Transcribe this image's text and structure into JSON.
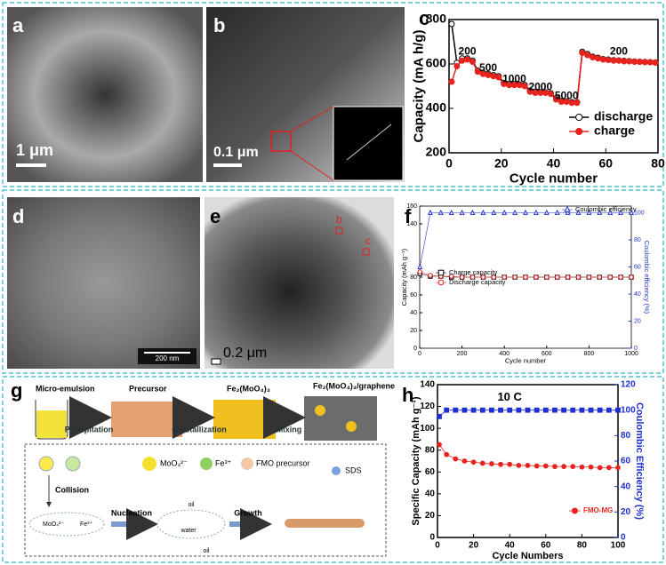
{
  "panels": {
    "a": {
      "label": "a",
      "scale": "1 μm"
    },
    "b": {
      "label": "b",
      "scale": "0.1 μm"
    },
    "d": {
      "label": "d",
      "scale": "200 nm"
    },
    "e": {
      "label": "e",
      "scale": "0.2 μm",
      "markers": [
        "b",
        "c"
      ]
    },
    "c": {
      "label": "c"
    },
    "f": {
      "label": "f"
    },
    "g": {
      "label": "g"
    },
    "h": {
      "label": "h"
    }
  },
  "diagram": {
    "stages": [
      "Micro-emulsion",
      "Precursor",
      "Fe₂(MoO₄)₃",
      "Fe₂(MoO₄)₃/graphene"
    ],
    "steps": [
      "Precipitation",
      "Crystallization",
      "Mixing"
    ],
    "legend": [
      "MoO₄²⁻",
      "Fe³⁺",
      "FMO precursor",
      "SDS"
    ],
    "process": [
      "Collision",
      "Nucleation",
      "Growth"
    ],
    "ions": [
      "MoO₄²⁻",
      "Fe³⁺"
    ],
    "phases": [
      "oil",
      "water",
      "oil"
    ]
  },
  "chart_data": [
    {
      "type": "line",
      "xlabel": "Cycle number",
      "ylabel": "Capacity (mA h/g)",
      "x": [
        1,
        3,
        5,
        7,
        9,
        11,
        13,
        15,
        17,
        19,
        21,
        23,
        25,
        27,
        29,
        31,
        33,
        35,
        37,
        39,
        41,
        43,
        45,
        47,
        49,
        51,
        53,
        55,
        57,
        59,
        61,
        63,
        65,
        67,
        69,
        71,
        73,
        75,
        77,
        79
      ],
      "series": [
        {
          "name": "discharge",
          "color": "#000000",
          "marker": "circle",
          "values": [
            780,
            605,
            625,
            625,
            615,
            570,
            560,
            555,
            550,
            545,
            515,
            510,
            510,
            508,
            505,
            480,
            475,
            473,
            472,
            468,
            445,
            433,
            432,
            428,
            427,
            655,
            645,
            633,
            628,
            622,
            620,
            617,
            616,
            614,
            613,
            611,
            610,
            609,
            608,
            607
          ]
        },
        {
          "name": "charge",
          "color": "#e8231e",
          "marker": "circle",
          "values": [
            520,
            590,
            615,
            620,
            610,
            565,
            555,
            550,
            545,
            540,
            510,
            505,
            505,
            505,
            500,
            475,
            470,
            470,
            470,
            465,
            440,
            430,
            430,
            425,
            425,
            650,
            640,
            630,
            625,
            620,
            618,
            615,
            615,
            612,
            612,
            610,
            610,
            608,
            608,
            606
          ]
        }
      ],
      "annotations": [
        "200",
        "500",
        "1000",
        "2000",
        "5000",
        "200"
      ],
      "xlim": [
        0,
        80
      ],
      "xticks": [
        0,
        20,
        40,
        60,
        80
      ],
      "ylim": [
        200,
        800
      ],
      "yticks": [
        200,
        400,
        600,
        800
      ]
    },
    {
      "type": "line",
      "xlabel": "Cycle number",
      "ylabel": "Capacity (mAh g⁻¹)",
      "y2label": "Coulombic efficiency (%)",
      "x": [
        1,
        50,
        100,
        150,
        200,
        250,
        300,
        350,
        400,
        450,
        500,
        550,
        600,
        650,
        700,
        750,
        800,
        850,
        900,
        950,
        1000
      ],
      "series": [
        {
          "name": "Coulombic efficiency",
          "color": "#2233cc",
          "marker": "triangle",
          "axis": "y2",
          "values": [
            60,
            100,
            100,
            100,
            100,
            100,
            100,
            100,
            100,
            100,
            100,
            100,
            100,
            100,
            100,
            100,
            100,
            100,
            100,
            100,
            100
          ]
        },
        {
          "name": "Charge capacity",
          "color": "#000000",
          "marker": "square",
          "values": [
            84,
            81,
            81,
            80,
            80,
            80,
            80,
            80,
            80,
            80,
            80,
            80,
            80,
            80,
            80,
            80,
            80,
            80,
            80,
            80,
            80
          ]
        },
        {
          "name": "Discharge capacity",
          "color": "#e8231e",
          "marker": "circle",
          "values": [
            86,
            82,
            81,
            81,
            80,
            80,
            80,
            80,
            80,
            80,
            80,
            80,
            80,
            80,
            80,
            80,
            80,
            80,
            80,
            80,
            80
          ]
        }
      ],
      "xlim": [
        0,
        1000
      ],
      "xticks": [
        0,
        200,
        400,
        600,
        800,
        1000
      ],
      "ylim": [
        0,
        160
      ],
      "yticks": [
        0,
        20,
        40,
        60,
        80,
        140,
        160
      ],
      "y2lim": [
        0,
        105
      ],
      "y2ticks": [
        0,
        20,
        40,
        60,
        80,
        100
      ]
    },
    {
      "type": "line",
      "xlabel": "Cycle Numbers",
      "ylabel": "Specific Capacity (mAh g⁻¹)",
      "y2label": "Coulombic Efficiency (%)",
      "x": [
        1,
        5,
        10,
        15,
        20,
        25,
        30,
        35,
        40,
        45,
        50,
        55,
        60,
        65,
        70,
        75,
        80,
        85,
        90,
        95,
        100
      ],
      "series": [
        {
          "name": "FMO-MG",
          "color": "#e8231e",
          "marker": "circle",
          "values": [
            85,
            76,
            72,
            70,
            69,
            68,
            67.5,
            67,
            67,
            66,
            66,
            65.5,
            65.5,
            65,
            65,
            65,
            64.5,
            64.5,
            64,
            64,
            64
          ]
        },
        {
          "name": "Coulombic Efficiency",
          "color": "#1f2fd0",
          "marker": "square",
          "axis": "y2",
          "values": [
            95,
            100,
            100,
            100,
            100,
            100,
            100,
            100,
            100,
            100,
            100,
            100,
            100,
            100,
            100,
            100,
            100,
            100,
            100,
            100,
            100
          ]
        }
      ],
      "annotations": [
        "10 C"
      ],
      "xlim": [
        0,
        100
      ],
      "xticks": [
        0,
        20,
        40,
        60,
        80,
        100
      ],
      "ylim": [
        0,
        140
      ],
      "yticks": [
        0,
        20,
        40,
        60,
        80,
        100,
        120,
        140
      ],
      "y2lim": [
        0,
        120
      ],
      "y2ticks": [
        0,
        20,
        40,
        60,
        80,
        100,
        120
      ]
    }
  ]
}
